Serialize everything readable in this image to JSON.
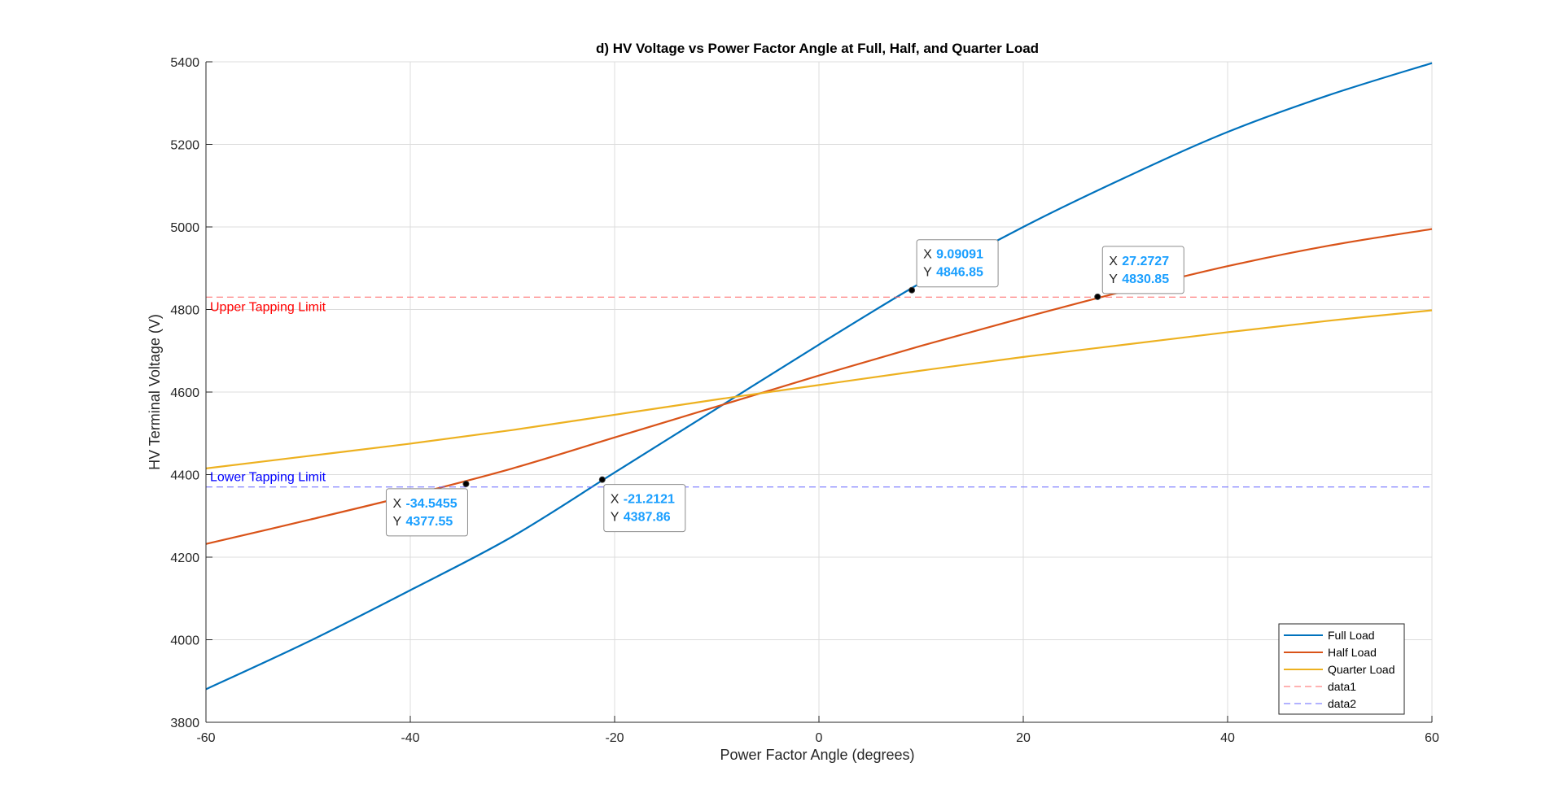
{
  "chart_data": {
    "type": "line",
    "title": "d) HV Voltage vs Power Factor Angle at Full, Half, and Quarter Load",
    "xlabel": "Power Factor Angle (degrees)",
    "ylabel": "HV Terminal Voltage (V)",
    "xlim": [
      -60,
      60
    ],
    "ylim": [
      3800,
      5400
    ],
    "xticks": [
      -60,
      -40,
      -20,
      0,
      20,
      40,
      60
    ],
    "yticks": [
      3800,
      4000,
      4200,
      4400,
      4600,
      4800,
      5000,
      5200,
      5400
    ],
    "grid": true,
    "legend_position": "bottom-right",
    "x": [
      -60,
      -50,
      -40,
      -30,
      -20,
      -10,
      0,
      10,
      20,
      30,
      40,
      50,
      60
    ],
    "series": [
      {
        "name": "Full Load",
        "color": "#0072BD",
        "style": "solid",
        "values": [
          3880,
          3995,
          4120,
          4250,
          4405,
          4560,
          4715,
          4865,
          5000,
          5120,
          5230,
          5320,
          5397
        ]
      },
      {
        "name": "Half Load",
        "color": "#D95319",
        "style": "solid",
        "values": [
          4232,
          4290,
          4350,
          4415,
          4490,
          4565,
          4640,
          4712,
          4780,
          4845,
          4905,
          4955,
          4995
        ]
      },
      {
        "name": "Quarter Load",
        "color": "#EDB120",
        "style": "solid",
        "values": [
          4415,
          4445,
          4475,
          4508,
          4545,
          4582,
          4617,
          4652,
          4685,
          4715,
          4745,
          4773,
          4798
        ]
      },
      {
        "name": "data1",
        "color": "#FF6666",
        "style": "dashed",
        "values": [
          4830,
          4830,
          4830,
          4830,
          4830,
          4830,
          4830,
          4830,
          4830,
          4830,
          4830,
          4830,
          4830
        ]
      },
      {
        "name": "data2",
        "color": "#6666FF",
        "style": "dashed",
        "values": [
          4370,
          4370,
          4370,
          4370,
          4370,
          4370,
          4370,
          4370,
          4370,
          4370,
          4370,
          4370,
          4370
        ]
      }
    ],
    "annotations": [
      {
        "text": "Upper Tapping Limit",
        "color": "#FF0000",
        "x": -60,
        "y": 4830
      },
      {
        "text": "Lower Tapping Limit",
        "color": "#0000FF",
        "x": -60,
        "y": 4370
      }
    ],
    "datatips": [
      {
        "x_label": "X",
        "x_value": "9.09091",
        "y_label": "Y",
        "y_value": "4846.85",
        "x": 9.09091,
        "y": 4846.85,
        "placement": "above-right"
      },
      {
        "x_label": "X",
        "x_value": "27.2727",
        "y_label": "Y",
        "y_value": "4830.85",
        "x": 27.2727,
        "y": 4830.85,
        "placement": "above-right"
      },
      {
        "x_label": "X",
        "x_value": "-34.5455",
        "y_label": "Y",
        "y_value": "4377.55",
        "x": -34.5455,
        "y": 4377.55,
        "placement": "below-left"
      },
      {
        "x_label": "X",
        "x_value": "-21.2121",
        "y_label": "Y",
        "y_value": "4387.86",
        "x": -21.2121,
        "y": 4387.86,
        "placement": "below-right"
      }
    ]
  }
}
